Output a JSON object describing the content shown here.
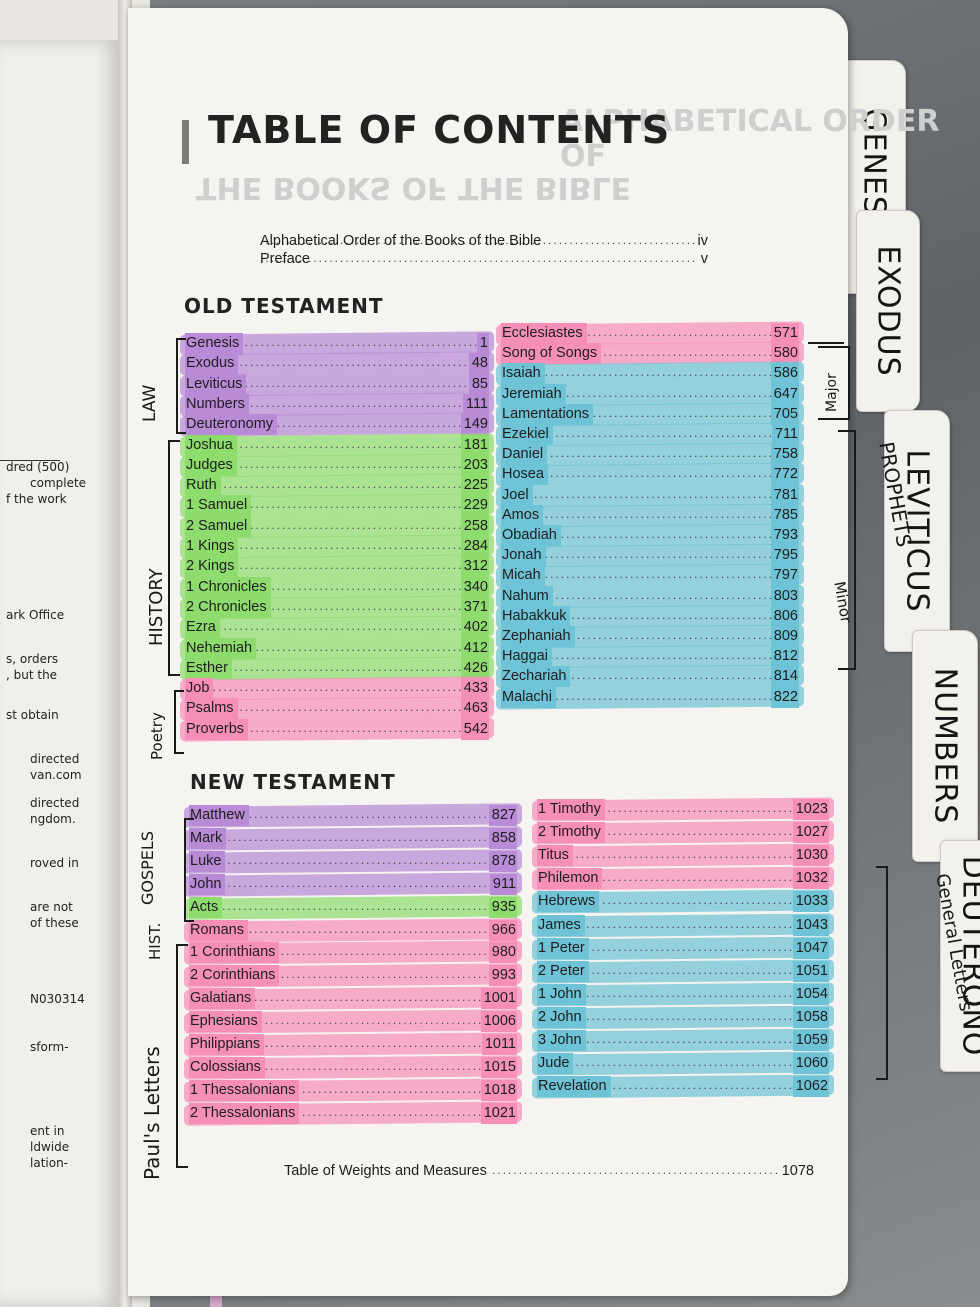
{
  "left_page": [
    "dred (500)",
    "complete",
    "f the work",
    "ark Office",
    "s, orders",
    ", but the",
    "st obtain",
    "directed",
    "van.com",
    "directed",
    "ngdom.",
    "roved in",
    "are not",
    "of these",
    "N030314",
    "sform-",
    "ent in",
    "ldwide",
    "lation-"
  ],
  "tabs": [
    "GENESIS",
    "EXODUS",
    "LEVITICUS",
    "NUMBERS",
    "DEUTERONO"
  ],
  "header": {
    "title": "TABLE OF CONTENTS",
    "ghost_top": "ALPHABETICAL ORDER OF",
    "ghost_bottom": "THE BOOKS OF THE BIBLE",
    "front_matter": [
      {
        "name": "Alphabetical Order of the Books of the Bible",
        "page": "iv"
      },
      {
        "name": "Preface",
        "page": "v"
      }
    ]
  },
  "old_testament": {
    "heading": "OLD TESTAMENT",
    "left": [
      {
        "name": "Genesis",
        "page": "1",
        "color": "#b98ad6"
      },
      {
        "name": "Exodus",
        "page": "48",
        "color": "#b98ad6"
      },
      {
        "name": "Leviticus",
        "page": "85",
        "color": "#b98ad6"
      },
      {
        "name": "Numbers",
        "page": "111",
        "color": "#b98ad6"
      },
      {
        "name": "Deuteronomy",
        "page": "149",
        "color": "#b98ad6"
      },
      {
        "name": "Joshua",
        "page": "181",
        "color": "#8fdc6e"
      },
      {
        "name": "Judges",
        "page": "203",
        "color": "#8fdc6e"
      },
      {
        "name": "Ruth",
        "page": "225",
        "color": "#8fdc6e"
      },
      {
        "name": "1 Samuel",
        "page": "229",
        "color": "#8fdc6e"
      },
      {
        "name": "2 Samuel",
        "page": "258",
        "color": "#8fdc6e"
      },
      {
        "name": "1 Kings",
        "page": "284",
        "color": "#8fdc6e"
      },
      {
        "name": "2 Kings",
        "page": "312",
        "color": "#8fdc6e"
      },
      {
        "name": "1 Chronicles",
        "page": "340",
        "color": "#8fdc6e"
      },
      {
        "name": "2 Chronicles",
        "page": "371",
        "color": "#8fdc6e"
      },
      {
        "name": "Ezra",
        "page": "402",
        "color": "#8fdc6e"
      },
      {
        "name": "Nehemiah",
        "page": "412",
        "color": "#8fdc6e"
      },
      {
        "name": "Esther",
        "page": "426",
        "color": "#8fdc6e"
      },
      {
        "name": "Job",
        "page": "433",
        "color": "#f68fb8"
      },
      {
        "name": "Psalms",
        "page": "463",
        "color": "#f68fb8"
      },
      {
        "name": "Proverbs",
        "page": "542",
        "color": "#f68fb8"
      }
    ],
    "right": [
      {
        "name": "Ecclesiastes",
        "page": "571",
        "color": "#f68fb8"
      },
      {
        "name": "Song of Songs",
        "page": "580",
        "color": "#f68fb8"
      },
      {
        "name": "Isaiah",
        "page": "586",
        "color": "#6fc3d6"
      },
      {
        "name": "Jeremiah",
        "page": "647",
        "color": "#6fc3d6"
      },
      {
        "name": "Lamentations",
        "page": "705",
        "color": "#6fc3d6"
      },
      {
        "name": "Ezekiel",
        "page": "711",
        "color": "#6fc3d6"
      },
      {
        "name": "Daniel",
        "page": "758",
        "color": "#6fc3d6"
      },
      {
        "name": "Hosea",
        "page": "772",
        "color": "#6fc3d6"
      },
      {
        "name": "Joel",
        "page": "781",
        "color": "#6fc3d6"
      },
      {
        "name": "Amos",
        "page": "785",
        "color": "#6fc3d6"
      },
      {
        "name": "Obadiah",
        "page": "793",
        "color": "#6fc3d6"
      },
      {
        "name": "Jonah",
        "page": "795",
        "color": "#6fc3d6"
      },
      {
        "name": "Micah",
        "page": "797",
        "color": "#6fc3d6"
      },
      {
        "name": "Nahum",
        "page": "803",
        "color": "#6fc3d6"
      },
      {
        "name": "Habakkuk",
        "page": "806",
        "color": "#6fc3d6"
      },
      {
        "name": "Zephaniah",
        "page": "809",
        "color": "#6fc3d6"
      },
      {
        "name": "Haggai",
        "page": "812",
        "color": "#6fc3d6"
      },
      {
        "name": "Zechariah",
        "page": "814",
        "color": "#6fc3d6"
      },
      {
        "name": "Malachi",
        "page": "822",
        "color": "#6fc3d6"
      }
    ]
  },
  "new_testament": {
    "heading": "NEW TESTAMENT",
    "left": [
      {
        "name": "Matthew",
        "page": "827",
        "color": "#b98ad6"
      },
      {
        "name": "Mark",
        "page": "858",
        "color": "#b98ad6"
      },
      {
        "name": "Luke",
        "page": "878",
        "color": "#b98ad6"
      },
      {
        "name": "John",
        "page": "911",
        "color": "#b98ad6"
      },
      {
        "name": "Acts",
        "page": "935",
        "color": "#8fdc6e"
      },
      {
        "name": "Romans",
        "page": "966",
        "color": "#f68fb8"
      },
      {
        "name": "1 Corinthians",
        "page": "980",
        "color": "#f68fb8"
      },
      {
        "name": "2 Corinthians",
        "page": "993",
        "color": "#f68fb8"
      },
      {
        "name": "Galatians",
        "page": "1001",
        "color": "#f68fb8"
      },
      {
        "name": "Ephesians",
        "page": "1006",
        "color": "#f68fb8"
      },
      {
        "name": "Philippians",
        "page": "1011",
        "color": "#f68fb8"
      },
      {
        "name": "Colossians",
        "page": "1015",
        "color": "#f68fb8"
      },
      {
        "name": "1 Thessalonians",
        "page": "1018",
        "color": "#f68fb8"
      },
      {
        "name": "2 Thessalonians",
        "page": "1021",
        "color": "#f68fb8"
      }
    ],
    "right": [
      {
        "name": "1 Timothy",
        "page": "1023",
        "color": "#f68fb8"
      },
      {
        "name": "2 Timothy",
        "page": "1027",
        "color": "#f68fb8"
      },
      {
        "name": "Titus",
        "page": "1030",
        "color": "#f68fb8"
      },
      {
        "name": "Philemon",
        "page": "1032",
        "color": "#f68fb8"
      },
      {
        "name": "Hebrews",
        "page": "1033",
        "color": "#6fc3d6"
      },
      {
        "name": "James",
        "page": "1043",
        "color": "#6fc3d6"
      },
      {
        "name": "1 Peter",
        "page": "1047",
        "color": "#6fc3d6"
      },
      {
        "name": "2 Peter",
        "page": "1051",
        "color": "#6fc3d6"
      },
      {
        "name": "1 John",
        "page": "1054",
        "color": "#6fc3d6"
      },
      {
        "name": "2 John",
        "page": "1058",
        "color": "#6fc3d6"
      },
      {
        "name": "3 John",
        "page": "1059",
        "color": "#6fc3d6"
      },
      {
        "name": "Jude",
        "page": "1060",
        "color": "#6fc3d6"
      },
      {
        "name": "Revelation",
        "page": "1062",
        "color": "#6fc3d6"
      }
    ]
  },
  "footer_entry": {
    "name": "Table of Weights and Measures",
    "page": "1078"
  },
  "annotations": {
    "law": "LAW",
    "history": "HISTORY",
    "poetry": "Poetry",
    "major": "Major",
    "minor": "Minor",
    "prophets": "PROPHETS",
    "gospels": "GOSPELS",
    "hist": "HIST.",
    "pauls_letters": "Paul's Letters",
    "general_letters": "General Letters"
  }
}
